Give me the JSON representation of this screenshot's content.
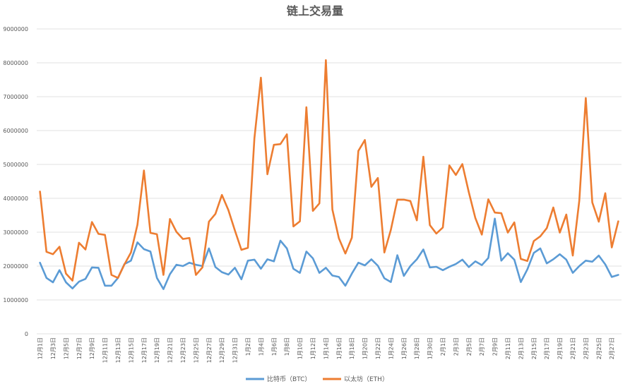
{
  "chart_data": {
    "type": "line",
    "title": "链上交易量",
    "xlabel": "",
    "ylabel": "",
    "ylim": [
      0,
      9000000
    ],
    "yticks": [
      0,
      1000000,
      2000000,
      3000000,
      4000000,
      5000000,
      6000000,
      7000000,
      8000000,
      9000000
    ],
    "ytick_labels": [
      "0",
      "1000000",
      "2000000",
      "3000000",
      "4000000",
      "5000000",
      "6000000",
      "7000000",
      "8000000",
      "9000000"
    ],
    "grid": true,
    "legend_position": "bottom",
    "x": [
      "12月1日",
      "12月2日",
      "12月3日",
      "12月4日",
      "12月5日",
      "12月6日",
      "12月7日",
      "12月8日",
      "12月9日",
      "12月10日",
      "12月11日",
      "12月12日",
      "12月13日",
      "12月14日",
      "12月15日",
      "12月16日",
      "12月17日",
      "12月18日",
      "12月19日",
      "12月20日",
      "12月21日",
      "12月22日",
      "12月23日",
      "12月24日",
      "12月25日",
      "12月26日",
      "12月27日",
      "12月28日",
      "12月29日",
      "12月30日",
      "12月31日",
      "1月1日",
      "1月2日",
      "1月3日",
      "1月4日",
      "1月5日",
      "1月6日",
      "1月7日",
      "1月8日",
      "1月9日",
      "1月10日",
      "1月11日",
      "1月12日",
      "1月13日",
      "1月14日",
      "1月15日",
      "1月16日",
      "1月17日",
      "1月18日",
      "1月19日",
      "1月20日",
      "1月21日",
      "1月22日",
      "1月23日",
      "1月24日",
      "1月25日",
      "1月26日",
      "1月27日",
      "1月28日",
      "1月29日",
      "1月30日",
      "1月31日",
      "2月1日",
      "2月2日",
      "2月3日",
      "2月4日",
      "2月5日",
      "2月6日",
      "2月7日",
      "2月8日",
      "2月9日",
      "2月10日",
      "2月11日",
      "2月12日",
      "2月13日",
      "2月14日",
      "2月15日",
      "2月16日",
      "2月17日",
      "2月18日",
      "2月19日",
      "2月20日",
      "2月21日",
      "2月22日",
      "2月23日",
      "2月24日",
      "2月25日",
      "2月26日",
      "2月27日",
      "2月28日"
    ],
    "x_tick_labels": [
      "12月1日",
      "12月3日",
      "12月5日",
      "12月7日",
      "12月9日",
      "12月11日",
      "12月13日",
      "12月15日",
      "12月17日",
      "12月19日",
      "12月21日",
      "12月23日",
      "12月25日",
      "12月27日",
      "12月29日",
      "12月31日",
      "1月2日",
      "1月4日",
      "1月6日",
      "1月8日",
      "1月10日",
      "1月12日",
      "1月14日",
      "1月16日",
      "1月18日",
      "1月20日",
      "1月22日",
      "1月24日",
      "1月26日",
      "1月28日",
      "1月30日",
      "2月1日",
      "2月3日",
      "2月5日",
      "2月7日",
      "2月9日",
      "2月11日",
      "2月13日",
      "2月15日",
      "2月17日",
      "2月19日",
      "2月21日",
      "2月23日",
      "2月25日",
      "2月27日"
    ],
    "series": [
      {
        "name": "比特币（BTC）",
        "color": "#5B9BD5",
        "values": [
          2100000,
          1650000,
          1520000,
          1880000,
          1520000,
          1340000,
          1540000,
          1620000,
          1960000,
          1950000,
          1420000,
          1420000,
          1650000,
          2060000,
          2160000,
          2700000,
          2500000,
          2430000,
          1650000,
          1320000,
          1760000,
          2040000,
          2000000,
          2100000,
          2040000,
          2000000,
          2520000,
          1970000,
          1820000,
          1750000,
          1950000,
          1610000,
          2160000,
          2190000,
          1920000,
          2200000,
          2140000,
          2750000,
          2520000,
          1920000,
          1800000,
          2430000,
          2230000,
          1800000,
          1950000,
          1720000,
          1680000,
          1420000,
          1780000,
          2100000,
          2020000,
          2200000,
          2010000,
          1640000,
          1530000,
          2320000,
          1710000,
          2000000,
          2200000,
          2490000,
          1960000,
          1980000,
          1880000,
          1980000,
          2060000,
          2190000,
          1970000,
          2140000,
          2030000,
          2240000,
          3400000,
          2160000,
          2380000,
          2190000,
          1530000,
          1900000,
          2390000,
          2520000,
          2080000,
          2200000,
          2350000,
          2190000,
          1800000,
          2000000,
          2160000,
          2130000,
          2310000,
          2050000,
          1680000,
          1740000
        ]
      },
      {
        "name": "以太坊（ETH）",
        "color": "#ED7D31",
        "values": [
          4200000,
          2420000,
          2350000,
          2570000,
          1780000,
          1570000,
          2690000,
          2490000,
          3300000,
          2950000,
          2920000,
          1740000,
          1650000,
          2050000,
          2400000,
          3220000,
          4820000,
          2980000,
          2940000,
          1740000,
          3390000,
          3010000,
          2800000,
          2830000,
          1740000,
          1960000,
          3310000,
          3540000,
          4100000,
          3650000,
          3050000,
          2480000,
          2540000,
          5770000,
          7560000,
          4710000,
          5580000,
          5600000,
          5890000,
          3170000,
          3320000,
          6690000,
          3630000,
          3850000,
          8080000,
          3670000,
          2820000,
          2370000,
          2840000,
          5400000,
          5720000,
          4340000,
          4600000,
          2400000,
          3070000,
          3960000,
          3960000,
          3920000,
          3350000,
          5230000,
          3210000,
          2960000,
          3140000,
          4970000,
          4690000,
          5010000,
          4180000,
          3420000,
          2930000,
          3970000,
          3580000,
          3560000,
          2990000,
          3290000,
          2210000,
          2150000,
          2740000,
          2880000,
          3120000,
          3730000,
          2990000,
          3520000,
          2310000,
          3930000,
          6960000,
          3880000,
          3310000,
          4150000,
          2550000,
          3320000
        ]
      }
    ]
  }
}
